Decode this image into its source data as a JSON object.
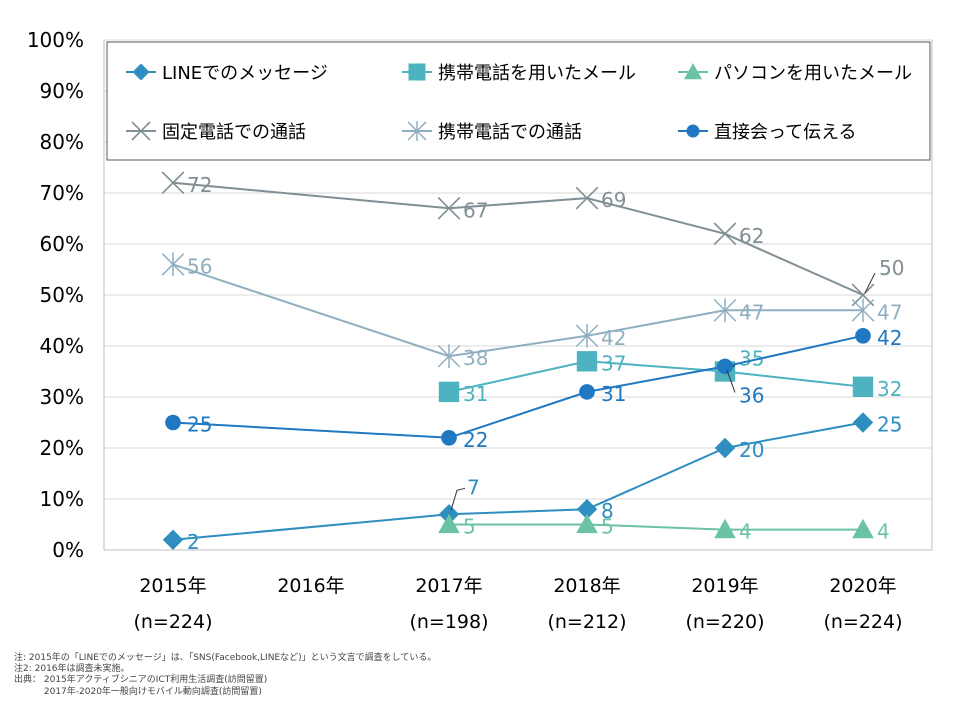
{
  "chart_data": {
    "type": "line",
    "categories": [
      "2015年",
      "2016年",
      "2017年",
      "2018年",
      "2019年",
      "2020年"
    ],
    "category_sublabels": [
      "(n=224)",
      "",
      "(n=198)",
      "(n=212)",
      "(n=220)",
      "(n=224)"
    ],
    "ylim": [
      0,
      100
    ],
    "yticks": [
      "0%",
      "10%",
      "20%",
      "30%",
      "40%",
      "50%",
      "60%",
      "70%",
      "80%",
      "90%",
      "100%"
    ],
    "grid": true,
    "legend_position": "top",
    "series": [
      {
        "name": "LINEでのメッセージ",
        "marker": "diamond",
        "color": "#2E8EC0",
        "values": [
          2,
          null,
          7,
          8,
          20,
          25
        ]
      },
      {
        "name": "携帯電話を用いたメール",
        "marker": "square",
        "color": "#4DB3C0",
        "values": [
          null,
          null,
          31,
          37,
          35,
          32
        ]
      },
      {
        "name": "パソコンを用いたメール",
        "marker": "triangle",
        "color": "#6CC2A5",
        "values": [
          null,
          null,
          5,
          5,
          4,
          4
        ]
      },
      {
        "name": "固定電話での通話",
        "marker": "x",
        "color": "#7F8F94",
        "values": [
          72,
          null,
          67,
          69,
          62,
          50
        ]
      },
      {
        "name": "携帯電話での通話",
        "marker": "asterisk",
        "color": "#8FAFC0",
        "values": [
          56,
          null,
          38,
          42,
          47,
          47
        ]
      },
      {
        "name": "直接会って伝える",
        "marker": "circle",
        "color": "#1F78C1",
        "values": [
          25,
          null,
          22,
          31,
          36,
          42
        ]
      }
    ]
  },
  "notes": [
    "注: 2015年の「LINEでのメッセージ」は、「SNS(Facebook,LINEなど)」という文言で調査をしている。",
    "注2: 2016年は調査未実施。",
    "出典： 2015年アクティブシニアのICT利用生活調査(訪問留置)",
    "　　　 2017年-2020年一般向けモバイル動向調査(訪問留置)"
  ]
}
